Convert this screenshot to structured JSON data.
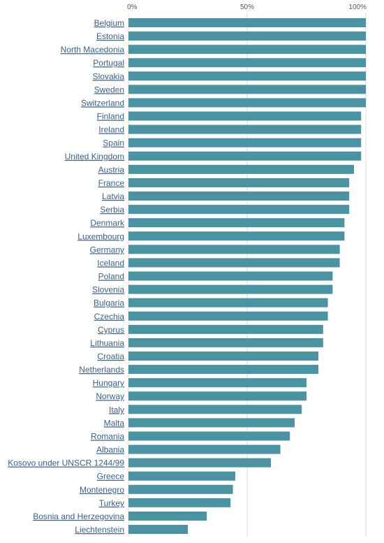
{
  "chart_data": {
    "type": "bar",
    "orientation": "horizontal",
    "title": "",
    "xlabel": "",
    "ylabel": "",
    "xlim": [
      0,
      100
    ],
    "ticks": [
      "0%",
      "50%",
      "100%"
    ],
    "tick_values": [
      0,
      50,
      100
    ],
    "grid": true,
    "colors": {
      "bar": "#4a93a3",
      "label": "#3a5f8a"
    },
    "categories": [
      "Belgium",
      "Estonia",
      "North Macedonia",
      "Portugal",
      "Slovakia",
      "Sweden",
      "Switzerland",
      "Finland",
      "Ireland",
      "Spain",
      "United Kingdom",
      "Austria",
      "France",
      "Latvia",
      "Serbia",
      "Denmark",
      "Luxembourg",
      "Germany",
      "Iceland",
      "Poland",
      "Slovenia",
      "Bulgaria",
      "Czechia",
      "Cyprus",
      "Lithuania",
      "Croatia",
      "Netherlands",
      "Hungary",
      "Norway",
      "Italy",
      "Malta",
      "Romania",
      "Albania",
      "Kosovo under UNSCR 1244/99",
      "Greece",
      "Montenegro",
      "Turkey",
      "Bosnia and Herzegovina",
      "Liechtenstein"
    ],
    "values": [
      100,
      100,
      100,
      100,
      100,
      100,
      100,
      98,
      98,
      98,
      98,
      95,
      93,
      93,
      93,
      91,
      91,
      89,
      89,
      86,
      86,
      84,
      84,
      82,
      82,
      80,
      80,
      75,
      75,
      73,
      70,
      68,
      64,
      60,
      45,
      44,
      43,
      33,
      25
    ]
  }
}
